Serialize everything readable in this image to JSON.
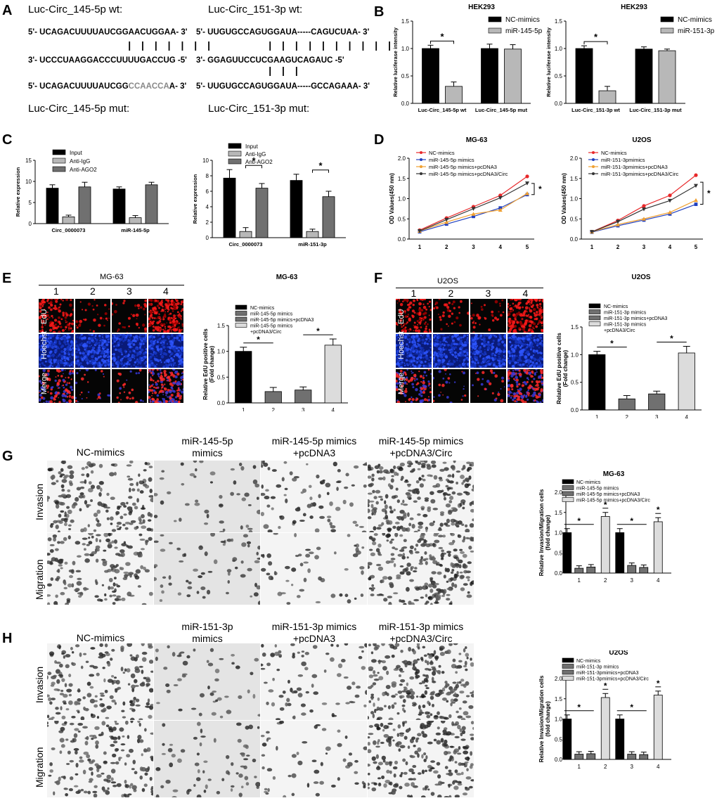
{
  "panels": {
    "A": {
      "label": "A",
      "wt1_title": "Luc-Circ_145-5p wt:",
      "wt1_seq": "5'- UCAGACUUUUAUCGGAACUGGAA- 3'",
      "mir1_seq": "3'- UCCCUAAGGACCCUUUUGACCUG -5'",
      "mut1_seq_a": "5'- UCAGACUUUUAUCGG",
      "mut1_seq_b": "CCAACCA",
      "mut1_seq_c": "A- 3'",
      "mut1_title": "Luc-Circ_145-5p mut:",
      "wt2_title": "Luc-Circ_151-3p wt:",
      "wt2_seq": "5'- UUGUGCCAGUGGAUA-----CAGUCUAA- 3'",
      "mir2_seq": "3'- GGAGUUCCUCGAAGUCAGAUC -5'",
      "mut2_seq": "5'- UUGUGCCAGUGGAUA-----GCCAGAAA- 3'",
      "mut2_title": "Luc-Circ_151-3p mut:",
      "mut_color": "#888888"
    },
    "B": {
      "label": "B"
    },
    "C": {
      "label": "C"
    },
    "D": {
      "label": "D"
    },
    "E": {
      "label": "E",
      "cell_line": "MG-63",
      "cols": [
        "1",
        "2",
        "3",
        "4"
      ],
      "rows": [
        "EdU",
        "Hoechst",
        "Merge"
      ]
    },
    "F": {
      "label": "F",
      "cell_line": "U2OS",
      "cols": [
        "1",
        "2",
        "3",
        "4"
      ],
      "rows": [
        "EdU",
        "Hoechst",
        "Merge"
      ]
    },
    "G": {
      "label": "G",
      "cols": [
        "NC-mimics",
        "miR-145-5p mimics",
        "miR-145-5p mimics +pcDNA3",
        "miR-145-5p mimics +pcDNA3/Circ"
      ],
      "rows": [
        "Invasion",
        "Migration"
      ]
    },
    "H": {
      "label": "H",
      "cols": [
        "NC-mimics",
        "miR-151-3p mimics",
        "miR-151-3p mimics +pcDNA3",
        "miR-151-3p mimics +pcDNA3/Circ"
      ],
      "rows": [
        "Invasion",
        "Migration"
      ]
    }
  },
  "colors": {
    "black": "#000000",
    "dgray": "#707070",
    "lgray": "#b8b8b8",
    "vlgray": "#dcdcdc",
    "red": "#e8282a",
    "blue": "#1f3fbf",
    "orange": "#f0a030"
  },
  "chart_data": [
    {
      "id": "B1",
      "type": "bar",
      "title": "HEK293",
      "ylabel": "Relative luciferase intensity",
      "ylim": [
        0,
        1.5
      ],
      "yticks": [
        0.0,
        0.5,
        1.0,
        1.5
      ],
      "categories": [
        "Luc-Circ_145-5p wt",
        "Luc-Circ_145-5p mut"
      ],
      "series": [
        {
          "name": "NC-mimics",
          "values": [
            1.0,
            1.0
          ],
          "errors": [
            0.06,
            0.08
          ]
        },
        {
          "name": "miR-145-5p",
          "values": [
            0.31,
            0.99
          ],
          "errors": [
            0.08,
            0.08
          ]
        }
      ],
      "sig": [
        {
          "cat": 0,
          "text": "*"
        }
      ]
    },
    {
      "id": "B2",
      "type": "bar",
      "title": "HEK293",
      "ylabel": "Relative luciferase intensity",
      "ylim": [
        0,
        1.5
      ],
      "yticks": [
        0.0,
        0.5,
        1.0,
        1.5
      ],
      "categories": [
        "Luc-Circ_151-3p wt",
        "Luc-Circ_151-3p mut"
      ],
      "series": [
        {
          "name": "NC-mimics",
          "values": [
            1.0,
            0.99
          ],
          "errors": [
            0.05,
            0.04
          ]
        },
        {
          "name": "miR-151-3p",
          "values": [
            0.23,
            0.96
          ],
          "errors": [
            0.08,
            0.03
          ]
        }
      ],
      "sig": [
        {
          "cat": 0,
          "text": "*"
        }
      ]
    },
    {
      "id": "C1",
      "type": "bar",
      "title": "",
      "ylabel": "Relative expression",
      "ylim": [
        0,
        15
      ],
      "yticks": [
        0,
        5,
        10,
        15
      ],
      "categories": [
        "Circ_0000073",
        "miR-145-5p"
      ],
      "series": [
        {
          "name": "Input",
          "values": [
            8.4,
            8.2
          ],
          "errors": [
            0.8,
            0.5
          ]
        },
        {
          "name": "Anti-IgG",
          "values": [
            1.6,
            1.4
          ],
          "errors": [
            0.4,
            0.5
          ]
        },
        {
          "name": "Anti-AGO2",
          "values": [
            8.7,
            9.2
          ],
          "errors": [
            1.1,
            0.6
          ]
        }
      ],
      "sig": []
    },
    {
      "id": "C2",
      "type": "bar",
      "title": "",
      "ylabel": "Relative expression",
      "ylim": [
        0,
        10
      ],
      "yticks": [
        0,
        2,
        4,
        6,
        8,
        10
      ],
      "categories": [
        "Circ_0000073",
        "miR-151-3p"
      ],
      "series": [
        {
          "name": "Input",
          "values": [
            7.7,
            7.4
          ],
          "errors": [
            1.1,
            0.8
          ]
        },
        {
          "name": "Anti-IgG",
          "values": [
            0.8,
            0.8
          ],
          "errors": [
            0.5,
            0.3
          ]
        },
        {
          "name": "Anti-AGO2",
          "values": [
            6.4,
            5.3
          ],
          "errors": [
            0.6,
            0.7
          ]
        }
      ],
      "sig": [
        {
          "cat": 0,
          "text": "*"
        },
        {
          "cat": 1,
          "text": "*"
        }
      ]
    },
    {
      "id": "D1",
      "type": "line",
      "title": "MG-63",
      "ylabel": "OD Values(450 nm)",
      "ylim": [
        0,
        2.0
      ],
      "yticks": [
        0.0,
        0.5,
        1.0,
        1.5,
        2.0
      ],
      "x": [
        1,
        2,
        3,
        4,
        5
      ],
      "series": [
        {
          "name": "NC-mimics",
          "values": [
            0.22,
            0.52,
            0.8,
            1.08,
            1.55
          ],
          "color": "#e8282a",
          "marker": "circle"
        },
        {
          "name": "miR-145-5p mimics",
          "values": [
            0.18,
            0.37,
            0.56,
            0.77,
            1.1
          ],
          "color": "#1f3fbf",
          "marker": "square"
        },
        {
          "name": "miR-145-5p mimics+pcDNA3",
          "values": [
            0.2,
            0.42,
            0.62,
            0.72,
            1.13
          ],
          "color": "#f0a030",
          "marker": "triangle"
        },
        {
          "name": "miR-145-5p mimics+pcDNA3/Circ",
          "values": [
            0.2,
            0.48,
            0.75,
            1.02,
            1.38
          ],
          "color": "#333333",
          "marker": "triangle-down"
        }
      ],
      "sig": "*"
    },
    {
      "id": "D2",
      "type": "line",
      "title": "U2OS",
      "ylabel": "OD Values(450 nm)",
      "ylim": [
        0,
        2.0
      ],
      "yticks": [
        0.0,
        0.5,
        1.0,
        1.5,
        2.0
      ],
      "x": [
        1,
        2,
        3,
        4,
        5
      ],
      "series": [
        {
          "name": "NC-mimics",
          "values": [
            0.18,
            0.46,
            0.82,
            1.08,
            1.58
          ],
          "color": "#e8282a",
          "marker": "circle"
        },
        {
          "name": "miR-151-3pmimics",
          "values": [
            0.17,
            0.33,
            0.47,
            0.62,
            0.86
          ],
          "color": "#1f3fbf",
          "marker": "square"
        },
        {
          "name": "miR-151-3pmimics+pcDNA3",
          "values": [
            0.18,
            0.36,
            0.5,
            0.66,
            0.96
          ],
          "color": "#f0a030",
          "marker": "triangle"
        },
        {
          "name": "miR-151-3pmimics+pcDNA3/Circ",
          "values": [
            0.18,
            0.43,
            0.74,
            0.95,
            1.32
          ],
          "color": "#333333",
          "marker": "triangle-down"
        }
      ],
      "sig": "*"
    },
    {
      "id": "E_bar",
      "type": "bar",
      "title": "MG-63",
      "ylabel": "Relative EdU positive cells (Fold change)",
      "ylim": [
        0,
        1.5
      ],
      "yticks": [
        0.0,
        0.5,
        1.0,
        1.5
      ],
      "categories": [
        "1",
        "2",
        "3",
        "4"
      ],
      "legend": [
        "NC-mimics",
        "miR-145-5p mimics",
        "miR-145-5p mimics+pcDNA3",
        "miR-145-5p mimics",
        "+pcDNA3/Circ"
      ],
      "values": [
        1.0,
        0.22,
        0.25,
        1.12
      ],
      "errors": [
        0.08,
        0.08,
        0.06,
        0.12
      ]
    },
    {
      "id": "F_bar",
      "type": "bar",
      "title": "U2OS",
      "ylabel": "Relative EdU positive cells (Fold change)",
      "ylim": [
        0,
        1.5
      ],
      "yticks": [
        0.0,
        0.5,
        1.0,
        1.5
      ],
      "categories": [
        "1",
        "2",
        "3",
        "4"
      ],
      "legend": [
        "NC-mimics",
        "miR-151-3p mimics",
        "miR-151-3p mimics+pcDNA3",
        "miR-151-3p mimics",
        "+pcDNA3/Circ"
      ],
      "values": [
        1.0,
        0.2,
        0.29,
        1.03
      ],
      "errors": [
        0.06,
        0.06,
        0.05,
        0.12
      ]
    },
    {
      "id": "G_bar",
      "type": "bar",
      "title": "MG-63",
      "ylabel": "Relative Invasion/Migration cells (fold change)",
      "ylim": [
        0,
        2.0
      ],
      "yticks": [
        0.0,
        0.5,
        1.0,
        1.5,
        2.0
      ],
      "categories": [
        "1",
        "2",
        "3",
        "4"
      ],
      "legend": [
        "NC-mimics",
        "miR-145-5p mimics",
        "miR-145-5p mimics+pcDNA3",
        "miR-145-5p mimics+pcDNA3/Circ"
      ],
      "series": [
        {
          "name": "NC-mimics",
          "values": [
            1.0,
            0.0,
            1.0,
            0.0
          ]
        },
        {
          "name": "miR-145-5p mimics",
          "values": [
            0.12,
            0.0,
            0.19,
            0.0
          ]
        },
        {
          "name": "miR-145-5p mimics+pcDNA3",
          "values": [
            0.15,
            0.0,
            0.14,
            0.0
          ]
        },
        {
          "name": "miR-145-5p mimics+pcDNA3/Circ",
          "values": [
            0.0,
            1.4,
            0.0,
            1.27
          ]
        }
      ]
    },
    {
      "id": "H_bar",
      "type": "bar",
      "title": "U2OS",
      "ylabel": "Relative Invasion/Migration cells (fold change)",
      "ylim": [
        0,
        2.0
      ],
      "yticks": [
        0.0,
        0.5,
        1.0,
        1.5,
        2.0
      ],
      "categories": [
        "1",
        "2",
        "3",
        "4"
      ],
      "legend": [
        "NC-mimics",
        "miR-151-3p mimics",
        "miR-151-3pmimics+pcDNA3",
        "miR-151-3pmimics+pcDNA3/Circ"
      ],
      "series": [
        {
          "name": "NC-mimics",
          "values": [
            1.0,
            0.0,
            1.0,
            0.0
          ]
        },
        {
          "name": "miR-151-3p mimics",
          "values": [
            0.13,
            0.0,
            0.13,
            0.0
          ]
        },
        {
          "name": "miR-151-3pmimics+pcDNA3",
          "values": [
            0.14,
            0.0,
            0.12,
            0.0
          ]
        },
        {
          "name": "miR-151-3pmimics+pcDNA3/Circ",
          "values": [
            0.0,
            1.53,
            0.0,
            1.59
          ]
        }
      ]
    }
  ]
}
